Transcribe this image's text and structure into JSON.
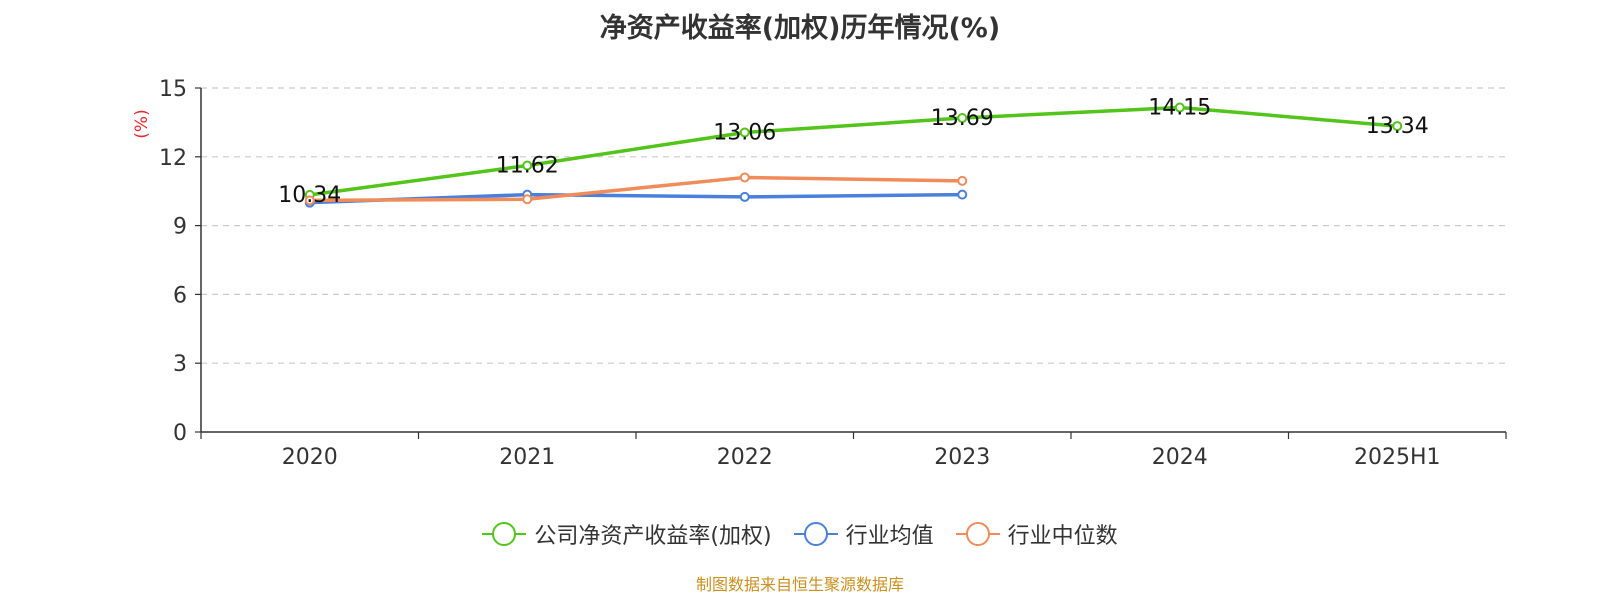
{
  "chart_data": {
    "type": "line",
    "title": "净资产收益率(加权)历年情况(%)",
    "ylabel": "(%)",
    "xlabel": "",
    "categories": [
      "2020",
      "2021",
      "2022",
      "2023",
      "2024",
      "2025H1"
    ],
    "ylim": [
      0,
      15
    ],
    "yticks": [
      "0",
      "3",
      "6",
      "9",
      "12",
      "15"
    ],
    "grid": "horizontal-dashed",
    "legend_position": "bottom-center",
    "series": [
      {
        "name": "公司净资产收益率(加权)",
        "color": "#52c41a",
        "values": [
          10.34,
          11.62,
          13.06,
          13.69,
          14.15,
          13.34
        ],
        "labels": [
          "10.34",
          "11.62",
          "13.06",
          "13.69",
          "14.15",
          "13.34"
        ],
        "show_labels": true
      },
      {
        "name": "行业均值",
        "color": "#4a7fdb",
        "values": [
          10.0,
          10.35,
          10.25,
          10.35,
          null,
          null
        ],
        "show_labels": false
      },
      {
        "name": "行业中位数",
        "color": "#f08c5a",
        "values": [
          10.1,
          10.15,
          11.1,
          10.95,
          null,
          null
        ],
        "show_labels": false
      }
    ],
    "source": "制图数据来自恒生聚源数据库",
    "source_color": "#c8901f",
    "ylabel_color": "#e8262a"
  }
}
